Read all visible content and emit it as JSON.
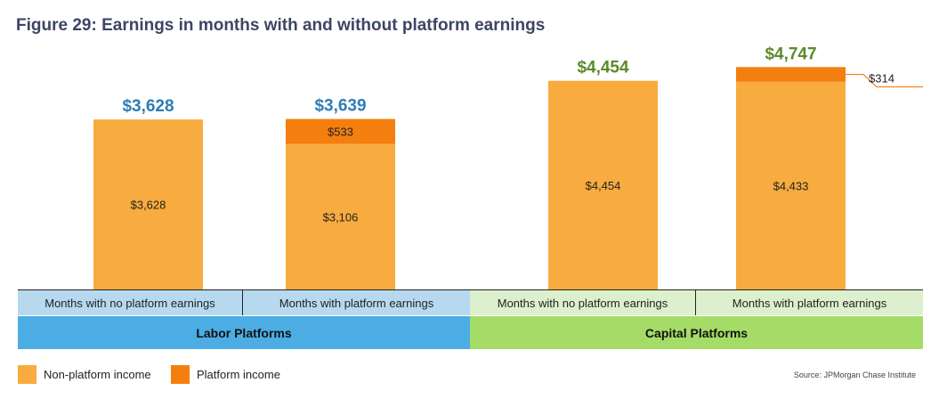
{
  "title": "Figure 29: Earnings in months with and without platform earnings",
  "colors": {
    "non_platform": "#f8ab3e",
    "platform": "#f57f0e",
    "labor_total_text": "#2f7cb5",
    "capital_total_text": "#5b8a2b",
    "labor_cat_bg": "#b7d9f0",
    "labor_group_bg": "#4bade3",
    "capital_cat_bg": "#ddf0cd",
    "capital_group_bg": "#a5dc67"
  },
  "categories": [
    "Months with no platform earnings",
    "Months with platform earnings",
    "Months with no platform earnings",
    "Months with platform earnings"
  ],
  "groups": [
    "Labor Platforms",
    "Capital Platforms"
  ],
  "legend": {
    "non_platform": "Non-platform income",
    "platform": "Platform income"
  },
  "source": "Source:  JPMorgan Chase Institute",
  "chart_data": {
    "type": "bar",
    "stacked": true,
    "categories": [
      "Months with no platform earnings",
      "Months with platform earnings",
      "Months with no platform earnings",
      "Months with platform earnings"
    ],
    "groups": [
      "Labor Platforms",
      "Labor Platforms",
      "Capital Platforms",
      "Capital Platforms"
    ],
    "series": [
      {
        "name": "Non-platform income",
        "values": [
          3628,
          3106,
          4454,
          4433
        ],
        "labels": [
          "$3,628",
          "$3,106",
          "$4,454",
          "$4,433"
        ]
      },
      {
        "name": "Platform income",
        "values": [
          0,
          533,
          0,
          314
        ],
        "labels": [
          "",
          "$533",
          "",
          "$314"
        ]
      }
    ],
    "totals": [
      3628,
      3639,
      4454,
      4747
    ],
    "total_labels": [
      "$3,628",
      "$3,639",
      "$4,454",
      "$4,747"
    ],
    "ylim": [
      0,
      5300
    ],
    "legend_position": "bottom-left"
  }
}
